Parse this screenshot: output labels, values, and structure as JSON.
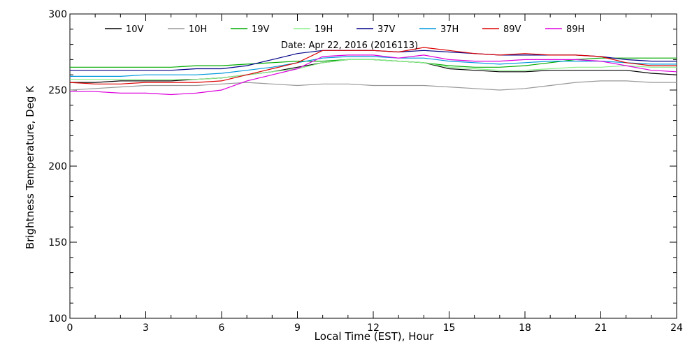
{
  "chart_data": {
    "type": "line",
    "title": "",
    "date_label": "Date: Apr 22, 2016 (2016113)",
    "xlabel": "Local Time (EST), Hour",
    "ylabel": "Brightness Temperature, Deg K",
    "xlim": [
      0,
      24
    ],
    "ylim": [
      100,
      300
    ],
    "xticks": [
      0,
      3,
      6,
      9,
      12,
      15,
      18,
      21,
      24
    ],
    "yticks": [
      100,
      150,
      200,
      250,
      300
    ],
    "grid": false,
    "legend_position": "top",
    "x": [
      0,
      1,
      2,
      3,
      4,
      5,
      6,
      7,
      8,
      9,
      10,
      11,
      12,
      13,
      14,
      15,
      16,
      17,
      18,
      19,
      20,
      21,
      22,
      23,
      24
    ],
    "series": [
      {
        "name": "10V",
        "color": "#000000",
        "values": [
          255,
          255,
          256,
          256,
          256,
          257,
          258,
          260,
          262,
          265,
          268,
          270,
          270,
          269,
          268,
          264,
          263,
          262,
          262,
          263,
          263,
          263,
          263,
          261,
          260
        ]
      },
      {
        "name": "10H",
        "color": "#999999",
        "values": [
          250,
          251,
          252,
          253,
          253,
          253,
          254,
          255,
          254,
          253,
          254,
          254,
          253,
          253,
          253,
          252,
          251,
          250,
          251,
          253,
          255,
          256,
          256,
          255,
          255
        ]
      },
      {
        "name": "19V",
        "color": "#00aa00",
        "values": [
          265,
          265,
          265,
          265,
          265,
          266,
          266,
          267,
          268,
          269,
          269,
          270,
          270,
          269,
          268,
          266,
          265,
          265,
          266,
          268,
          270,
          271,
          271,
          271,
          271
        ]
      },
      {
        "name": "19H",
        "color": "#88ee88",
        "values": [
          257,
          257,
          257,
          257,
          257,
          257,
          258,
          260,
          262,
          264,
          268,
          270,
          270,
          269,
          268,
          265,
          264,
          263,
          263,
          264,
          265,
          265,
          266,
          265,
          265
        ]
      },
      {
        "name": "37V",
        "color": "#000088",
        "values": [
          263,
          263,
          263,
          263,
          263,
          264,
          264,
          266,
          270,
          274,
          276,
          276,
          276,
          275,
          276,
          275,
          274,
          273,
          273,
          273,
          273,
          272,
          270,
          269,
          269
        ]
      },
      {
        "name": "37H",
        "color": "#0099dd",
        "values": [
          259,
          259,
          259,
          260,
          260,
          260,
          261,
          263,
          265,
          268,
          271,
          272,
          272,
          271,
          271,
          269,
          268,
          267,
          268,
          269,
          269,
          269,
          268,
          267,
          267
        ]
      },
      {
        "name": "89V",
        "color": "#dd0000",
        "values": [
          255,
          254,
          254,
          255,
          255,
          255,
          256,
          260,
          264,
          268,
          276,
          276,
          276,
          275,
          278,
          276,
          274,
          273,
          274,
          273,
          273,
          272,
          268,
          266,
          266
        ]
      },
      {
        "name": "89H",
        "color": "#dd00dd",
        "values": [
          249,
          249,
          248,
          248,
          247,
          248,
          250,
          256,
          260,
          264,
          272,
          273,
          273,
          271,
          273,
          270,
          269,
          269,
          270,
          270,
          270,
          269,
          266,
          263,
          262
        ]
      }
    ]
  }
}
